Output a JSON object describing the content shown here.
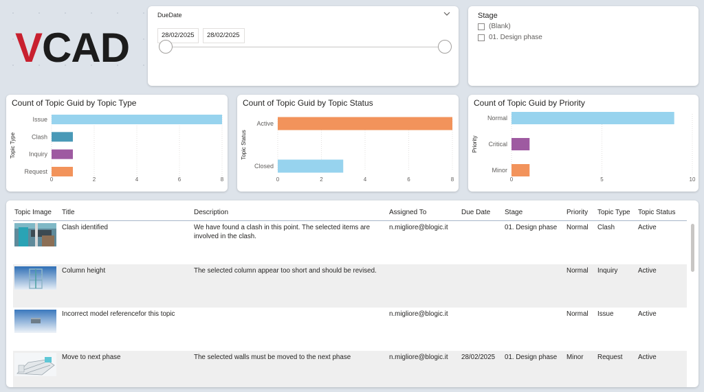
{
  "logo": {
    "text": "VCAD",
    "v_color": "#c8202f",
    "rest_color": "#1c1c1c"
  },
  "due_date_slicer": {
    "title": "DueDate",
    "start": "28/02/2025",
    "end": "28/02/2025"
  },
  "stage_slicer": {
    "title": "Stage",
    "options": [
      "(Blank)",
      "01. Design phase"
    ]
  },
  "chart_data": [
    {
      "type": "bar",
      "title": "Count of Topic Guid by Topic Type",
      "ylabel": "Topic Type",
      "categories": [
        "Issue",
        "Clash",
        "Inquiry",
        "Request"
      ],
      "values": [
        8,
        1,
        1,
        1
      ],
      "colors": [
        "#97d3ee",
        "#4999b7",
        "#9e5aa1",
        "#f2935b"
      ],
      "xlim": [
        0,
        8
      ],
      "ticks": [
        0,
        2,
        4,
        6,
        8
      ]
    },
    {
      "type": "bar",
      "title": "Count of Topic Guid by Topic Status",
      "ylabel": "Topic Status",
      "categories": [
        "Active",
        "Closed"
      ],
      "values": [
        8,
        3
      ],
      "colors": [
        "#f2935b",
        "#97d3ee"
      ],
      "xlim": [
        0,
        8
      ],
      "ticks": [
        0,
        2,
        4,
        6,
        8
      ]
    },
    {
      "type": "bar",
      "title": "Count of Topic Guid by Priority",
      "ylabel": "Priority",
      "categories": [
        "Normal",
        "Critical",
        "Minor"
      ],
      "values": [
        9,
        1,
        1
      ],
      "colors": [
        "#97d3ee",
        "#9e5aa1",
        "#f2935b"
      ],
      "xlim": [
        0,
        10
      ],
      "ticks": [
        0,
        5,
        10
      ]
    }
  ],
  "table": {
    "headers": [
      "Topic Image",
      "Title",
      "Description",
      "Assigned To",
      "Due Date",
      "Stage",
      "Priority",
      "Topic Type",
      "Topic Status"
    ],
    "rows": [
      {
        "image": "clash-thumbnail",
        "title": "Clash identified",
        "description": "We have found a clash in this point. The selected items are involved in the clash.",
        "assigned_to": "n.migliore@blogic.it",
        "due_date": "",
        "stage": "01. Design phase",
        "priority": "Normal",
        "topic_type": "Clash",
        "topic_status": "Active"
      },
      {
        "image": "column-thumbnail",
        "title": "Column height",
        "description": "The selected column appear too short and should be revised.",
        "assigned_to": "",
        "due_date": "",
        "stage": "",
        "priority": "Normal",
        "topic_type": "Inquiry",
        "topic_status": "Active"
      },
      {
        "image": "model-thumbnail",
        "title": "Incorrect model referencefor this topic",
        "description": "",
        "assigned_to": "n.migliore@blogic.it",
        "due_date": "",
        "stage": "",
        "priority": "Normal",
        "topic_type": "Issue",
        "topic_status": "Active"
      },
      {
        "image": "walls-thumbnail",
        "title": "Move to next phase",
        "description": "The selected walls must be moved to the next phase",
        "assigned_to": "n.migliore@blogic.it",
        "due_date": "28/02/2025",
        "stage": "01. Design phase",
        "priority": "Minor",
        "topic_type": "Request",
        "topic_status": "Active"
      }
    ]
  }
}
